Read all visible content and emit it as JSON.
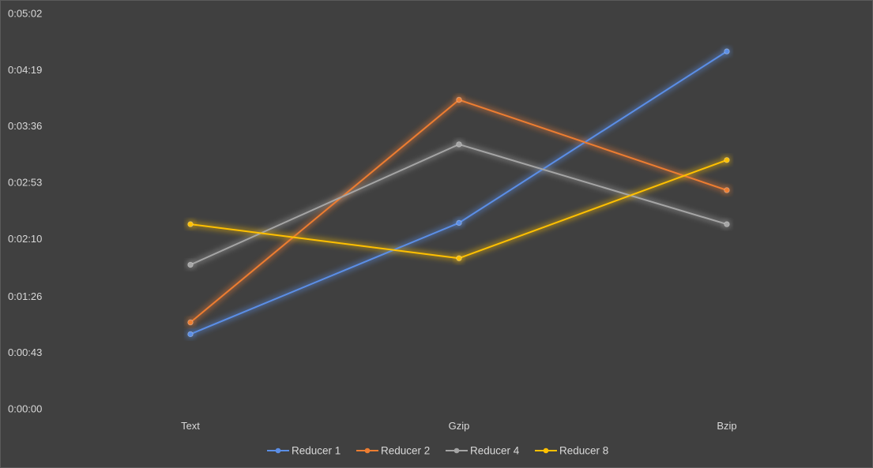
{
  "chart_data": {
    "type": "line",
    "title": "",
    "xlabel": "",
    "ylabel": "",
    "categories": [
      "Text",
      "Gzip",
      "Bzip"
    ],
    "y_unit": "seconds (displayed as h:mm:ss)",
    "ylim": [
      0,
      302
    ],
    "y_ticks": [
      0,
      43,
      86,
      130,
      173,
      216,
      259,
      302
    ],
    "y_tick_labels": [
      "0:00:00",
      "0:00:43",
      "0:01:26",
      "0:02:10",
      "0:02:53",
      "0:03:36",
      "0:04:19",
      "0:05:02"
    ],
    "grid": false,
    "legend_position": "bottom",
    "series": [
      {
        "name": "Reducer 1",
        "color": "#5b8ee6",
        "values": [
          57,
          142,
          273
        ]
      },
      {
        "name": "Reducer 2",
        "color": "#ed7d31",
        "values": [
          66,
          236,
          167
        ]
      },
      {
        "name": "Reducer 4",
        "color": "#a5a5a5",
        "values": [
          110,
          202,
          141
        ]
      },
      {
        "name": "Reducer 8",
        "color": "#ffc000",
        "values": [
          141,
          115,
          190
        ]
      }
    ],
    "background_color": "#404040",
    "text_color": "#d9d9d9"
  }
}
